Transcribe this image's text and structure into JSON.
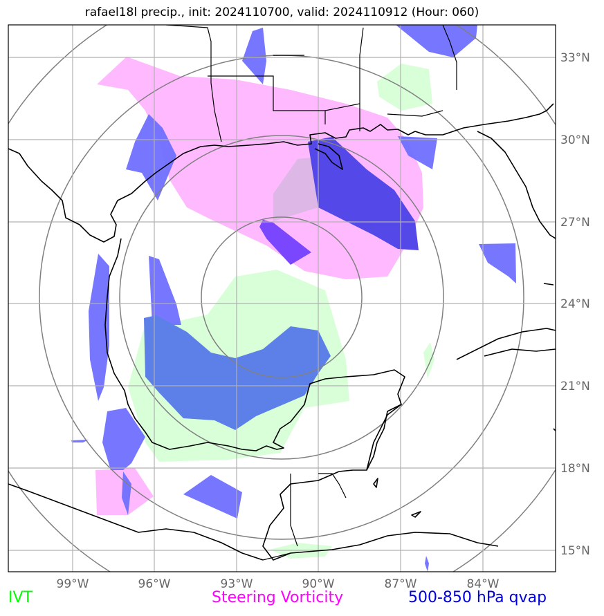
{
  "title": "rafael18l precip., init: 2024110700, valid: 2024110912 (Hour: 060)",
  "lat_labels": [
    "33°N",
    "30°N",
    "27°N",
    "24°N",
    "21°N",
    "18°N",
    "15°N"
  ],
  "lon_labels": [
    "99°W",
    "96°W",
    "93°W",
    "90°W",
    "87°W",
    "84°W"
  ],
  "legend": {
    "ivt": "IVT",
    "steering_vorticity": "Steering Vorticity",
    "qvap": "500-850 hPa qvap"
  },
  "colors": {
    "ivt": "#00ff00",
    "steering_vorticity": "#ff00ff",
    "qvap": "#0000dd",
    "ivt_fill": "#d8ffd8",
    "vorticity_fill": "#ffbaff",
    "qvap_fill": "#6f6fff"
  }
}
